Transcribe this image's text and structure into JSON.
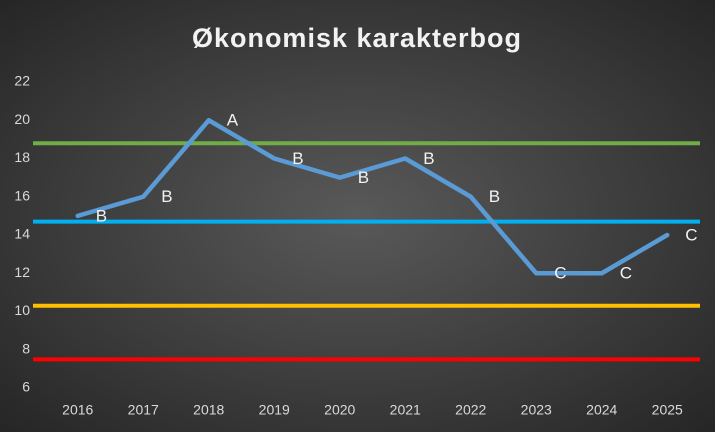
{
  "chart_data": {
    "type": "line",
    "title": "Økonomisk karakterbog",
    "categories": [
      "2016",
      "2017",
      "2018",
      "2019",
      "2020",
      "2021",
      "2022",
      "2023",
      "2024",
      "2025"
    ],
    "values": [
      15,
      16,
      20,
      18,
      17,
      18,
      16,
      12,
      12,
      14
    ],
    "value_labels": [
      "B",
      "B",
      "A",
      "B",
      "B",
      "B",
      "B",
      "C",
      "C",
      "C"
    ],
    "color": "#5b9bd5",
    "reference_lines": [
      {
        "value": 18.8,
        "color": "#70ad47"
      },
      {
        "value": 14.7,
        "color": "#00b0f0"
      },
      {
        "value": 10.3,
        "color": "#ffc000"
      },
      {
        "value": 7.5,
        "color": "#ff0000"
      }
    ],
    "ylim": [
      6,
      22
    ],
    "yticks": [
      6,
      8,
      10,
      12,
      14,
      16,
      18,
      20,
      22
    ],
    "grid": false
  }
}
